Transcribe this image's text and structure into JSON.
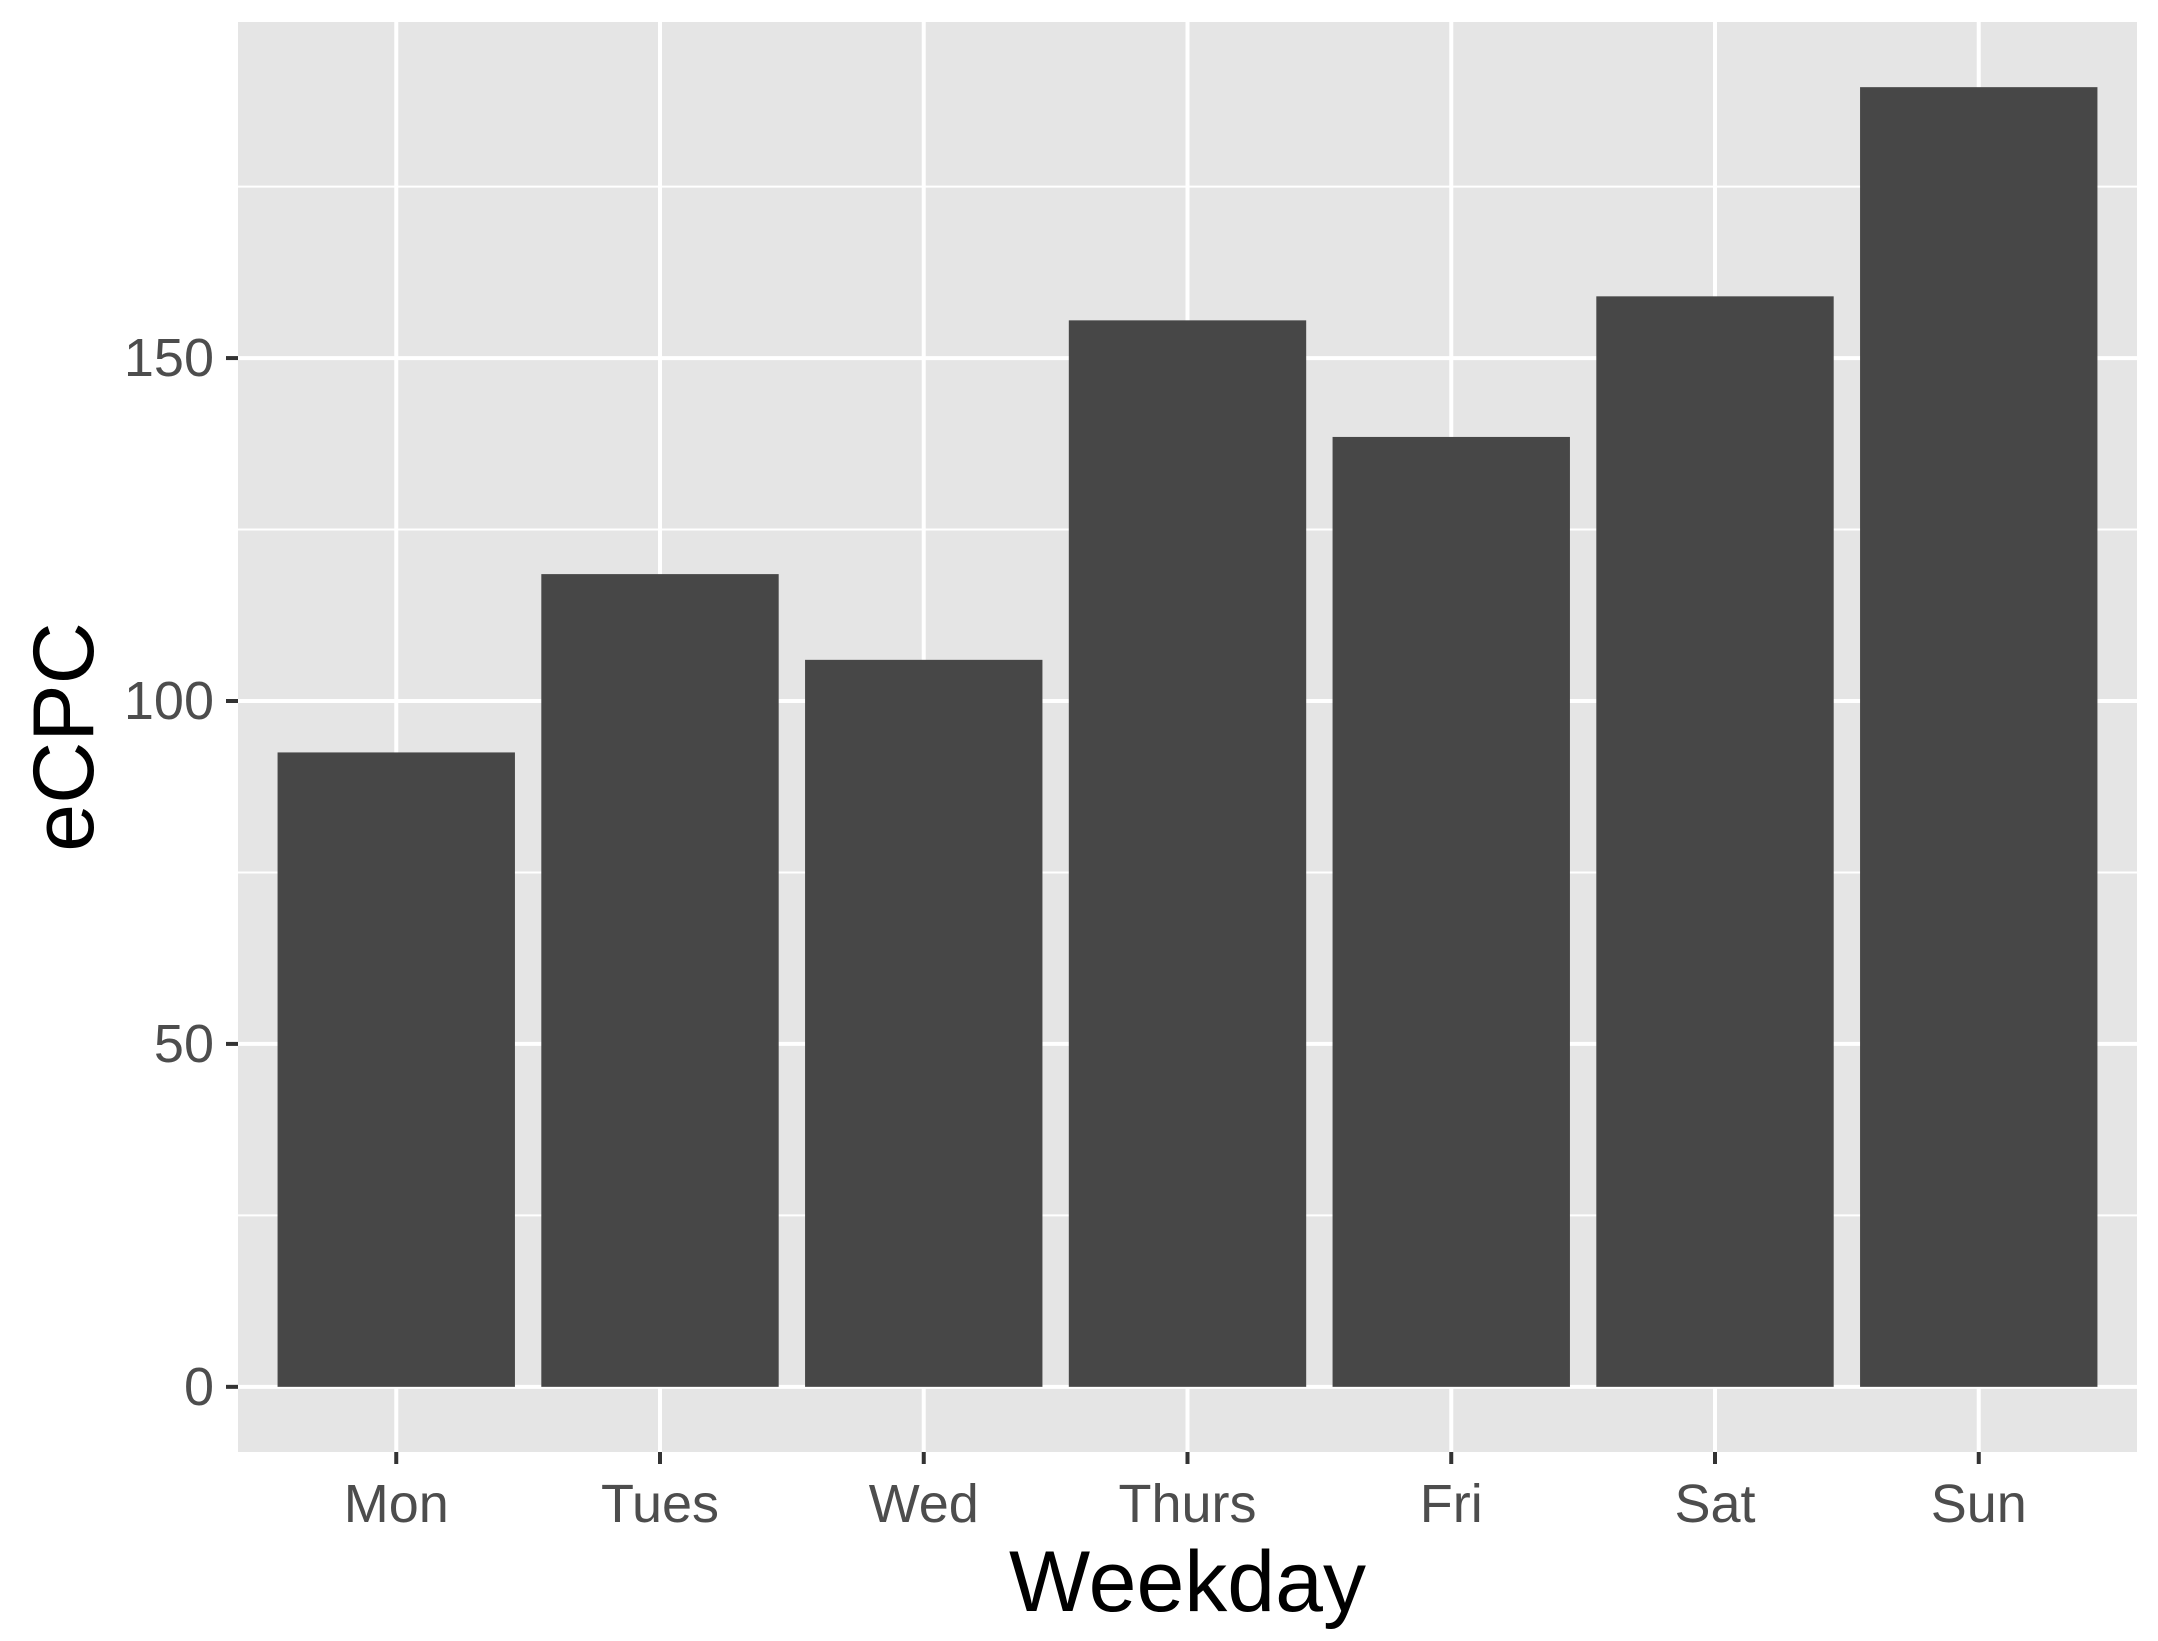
{
  "chart_data": {
    "type": "bar",
    "categories": [
      "Mon",
      "Tues",
      "Wed",
      "Thurs",
      "Fri",
      "Sat",
      "Sun"
    ],
    "values": [
      92.5,
      118.5,
      106,
      155.5,
      138.5,
      159,
      189.5
    ],
    "xlabel": "Weekday",
    "ylabel": "eCPC",
    "ylim": [
      -9.5,
      199
    ],
    "yticks": [
      0,
      50,
      100,
      150
    ],
    "ytick_labels": [
      "0",
      "50",
      "100",
      "150"
    ],
    "grid": true,
    "colors": {
      "bar": "#474747",
      "panel": "#e5e5e5",
      "grid": "#ffffff",
      "tick_text": "#4d4d4d",
      "tick_mark": "#333333",
      "title_text": "#000000"
    }
  }
}
